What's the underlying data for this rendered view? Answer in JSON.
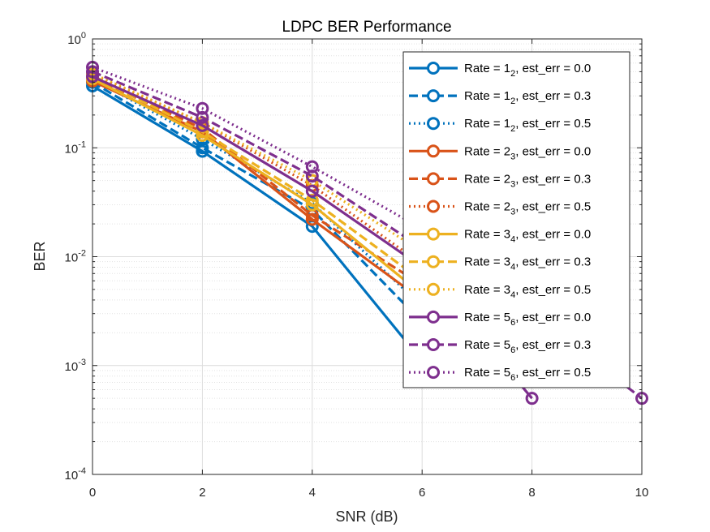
{
  "chart_data": {
    "type": "line",
    "title": "LDPC BER Performance",
    "xlabel": "SNR (dB)",
    "ylabel": "BER",
    "x_ticks": [
      "0",
      "2",
      "4",
      "6",
      "8",
      "10"
    ],
    "y_tick_base": "10",
    "y_tick_exponents": [
      "0",
      "-1",
      "-2",
      "-3",
      "-4"
    ],
    "xlim": [
      0,
      10
    ],
    "ylim": [
      0.0001,
      1
    ],
    "y_scale": "log",
    "grid": "on (major and minor)",
    "legend_position": "top-right",
    "colors": {
      "rate_1_2": "#0072BD",
      "rate_2_3": "#D95319",
      "rate_3_4": "#EDB120",
      "rate_5_6": "#7E2F8E"
    },
    "series": [
      {
        "rate_main": "1",
        "rate_sub": "2",
        "err_text": ", est_err = 0.0",
        "label": "Rate = 12, est_err = 0.0",
        "color": "#0072BD",
        "dash": "solid",
        "x": [
          0,
          2,
          4,
          6
        ],
        "y": [
          0.37,
          0.093,
          0.019,
          0.0011
        ]
      },
      {
        "rate_main": "1",
        "rate_sub": "2",
        "err_text": ", est_err = 0.3",
        "label": "Rate = 12, est_err = 0.3",
        "color": "#0072BD",
        "dash": "dashed",
        "x": [
          0,
          2,
          4,
          6
        ],
        "y": [
          0.4,
          0.1,
          0.027,
          0.0025
        ]
      },
      {
        "rate_main": "1",
        "rate_sub": "2",
        "err_text": ", est_err = 0.5",
        "label": "Rate = 12, est_err = 0.5",
        "color": "#0072BD",
        "dash": "dotted",
        "x": [
          0,
          2,
          4,
          6
        ],
        "y": [
          0.43,
          0.12,
          0.031,
          0.0035
        ]
      },
      {
        "rate_main": "2",
        "rate_sub": "3",
        "err_text": ", est_err = 0.0",
        "label": "Rate = 23, est_err = 0.0",
        "color": "#D95319",
        "dash": "solid",
        "x": [
          0,
          2,
          4,
          6
        ],
        "y": [
          0.41,
          0.14,
          0.022,
          0.004
        ]
      },
      {
        "rate_main": "2",
        "rate_sub": "3",
        "err_text": ", est_err = 0.3",
        "label": "Rate = 23, est_err = 0.3",
        "color": "#D95319",
        "dash": "dashed",
        "x": [
          0,
          2,
          4,
          6
        ],
        "y": [
          0.44,
          0.15,
          0.024,
          0.0055
        ]
      },
      {
        "rate_main": "2",
        "rate_sub": "3",
        "err_text": ", est_err = 0.5",
        "label": "Rate = 23, est_err = 0.5",
        "color": "#D95319",
        "dash": "dotted",
        "x": [
          0,
          2,
          4,
          6
        ],
        "y": [
          0.47,
          0.17,
          0.045,
          0.0085
        ]
      },
      {
        "rate_main": "3",
        "rate_sub": "4",
        "err_text": ", est_err = 0.0",
        "label": "Rate = 34, est_err = 0.0",
        "color": "#EDB120",
        "dash": "solid",
        "x": [
          0,
          2,
          4,
          6
        ],
        "y": [
          0.43,
          0.13,
          0.03,
          0.0045
        ]
      },
      {
        "rate_main": "3",
        "rate_sub": "4",
        "err_text": ", est_err = 0.3",
        "label": "Rate = 34, est_err = 0.3",
        "color": "#EDB120",
        "dash": "dashed",
        "x": [
          0,
          2,
          4,
          6
        ],
        "y": [
          0.46,
          0.14,
          0.033,
          0.006
        ]
      },
      {
        "rate_main": "3",
        "rate_sub": "4",
        "err_text": ", est_err = 0.5",
        "label": "Rate = 34, est_err = 0.5",
        "color": "#EDB120",
        "dash": "dotted",
        "x": [
          0,
          2,
          4,
          6
        ],
        "y": [
          0.48,
          0.17,
          0.05,
          0.011
        ]
      },
      {
        "rate_main": "5",
        "rate_sub": "6",
        "err_text": ", est_err = 0.0",
        "label": "Rate = 56, est_err = 0.0",
        "color": "#7E2F8E",
        "dash": "solid",
        "x": [
          0,
          2,
          4,
          6,
          8
        ],
        "y": [
          0.45,
          0.16,
          0.04,
          0.008,
          0.0005
        ]
      },
      {
        "rate_main": "5",
        "rate_sub": "6",
        "err_text": ", est_err = 0.3",
        "label": "Rate = 56, est_err = 0.3",
        "color": "#7E2F8E",
        "dash": "dashed",
        "x": [
          0,
          2,
          4,
          6,
          8,
          10
        ],
        "y": [
          0.5,
          0.19,
          0.055,
          0.012,
          0.003,
          0.0005
        ]
      },
      {
        "rate_main": "5",
        "rate_sub": "6",
        "err_text": ", est_err = 0.5",
        "label": "Rate = 56, est_err = 0.5",
        "color": "#7E2F8E",
        "dash": "dotted",
        "x": [
          0,
          2,
          4,
          6
        ],
        "y": [
          0.55,
          0.23,
          0.067,
          0.018
        ]
      }
    ]
  }
}
